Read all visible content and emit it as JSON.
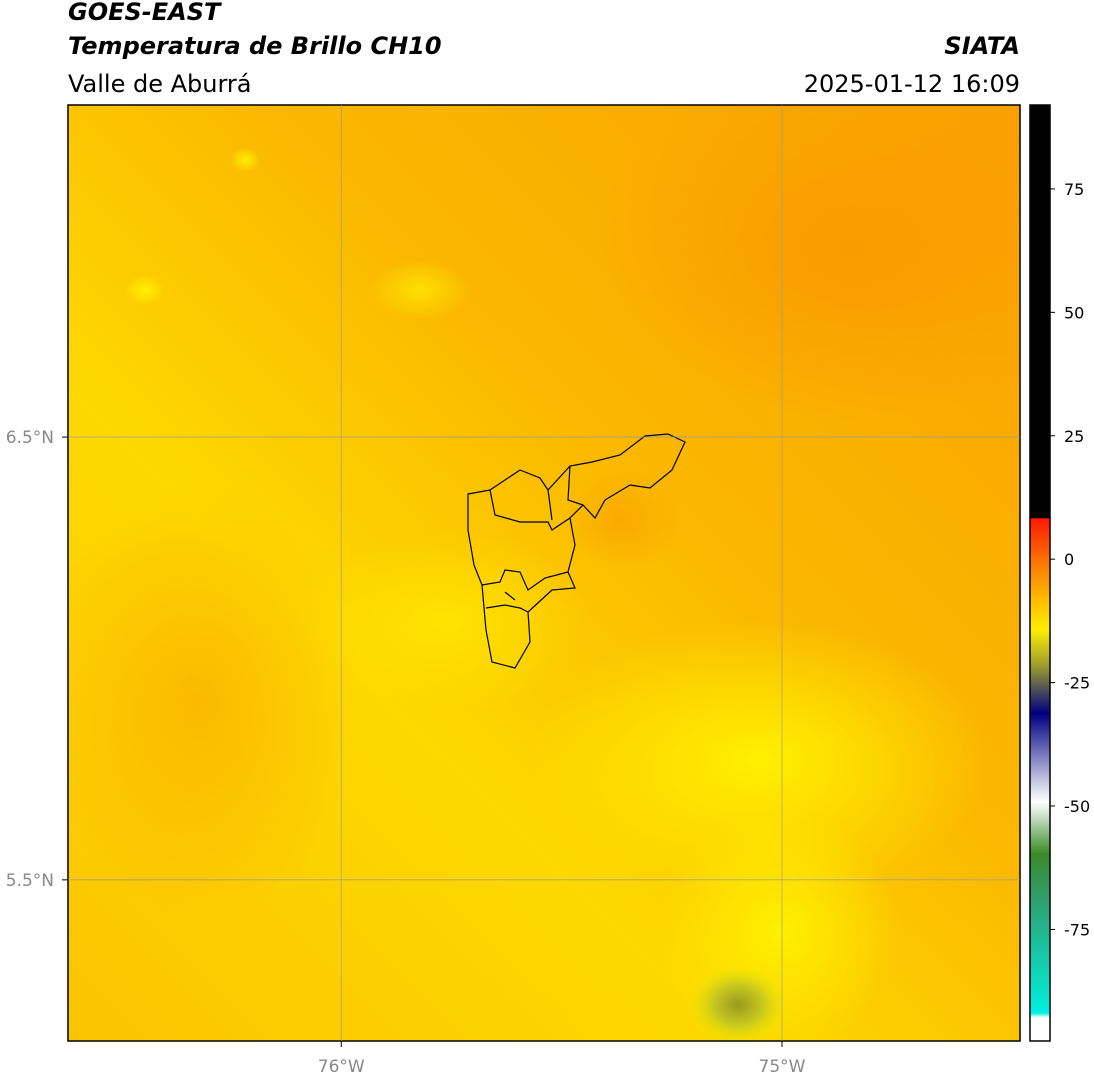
{
  "header": {
    "title": "GOES-EAST",
    "subtitle": "Temperatura de Brillo CH10",
    "region": "Valle de Aburrá",
    "source": "SIATA",
    "datetime": "2025-01-12 16:09"
  },
  "map": {
    "xlim": [
      -76.62,
      -74.46
    ],
    "ylim": [
      5.136,
      7.25
    ],
    "xticks": [
      {
        "value": -76,
        "label": "76°W"
      },
      {
        "value": -75,
        "label": "75°W"
      }
    ],
    "yticks": [
      {
        "value": 6.5,
        "label": "6.5°N"
      },
      {
        "value": 5.5,
        "label": "5.5°N"
      }
    ]
  },
  "colorbar": {
    "lim": [
      -97.6,
      92
    ],
    "ticks": [
      75,
      50,
      25,
      0,
      -25,
      -50,
      -75
    ]
  }
}
